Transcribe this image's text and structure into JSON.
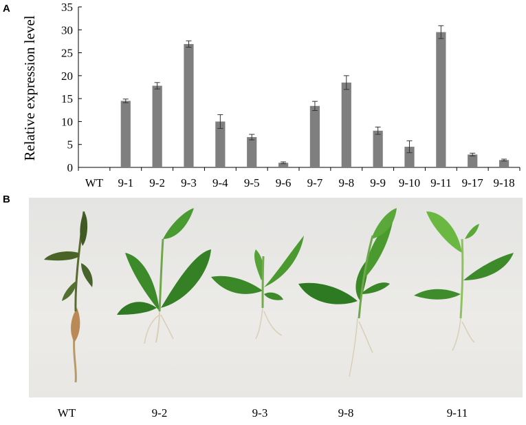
{
  "panel_a_label": "A",
  "panel_b_label": "B",
  "chart_data": {
    "type": "bar",
    "ylabel": "Relative expression level",
    "xlabel": "",
    "ylim": [
      0,
      35
    ],
    "yticks": [
      0,
      5,
      10,
      15,
      20,
      25,
      30,
      35
    ],
    "categories": [
      "WT",
      "9-1",
      "9-2",
      "9-3",
      "9-4",
      "9-5",
      "9-6",
      "9-7",
      "9-8",
      "9-9",
      "9-10",
      "9-11",
      "9-17",
      "9-18"
    ],
    "values": [
      0,
      14.5,
      17.8,
      26.9,
      10.0,
      6.6,
      1.0,
      13.4,
      18.5,
      8.0,
      4.5,
      29.5,
      2.8,
      1.6
    ],
    "errors": [
      0,
      0.4,
      0.7,
      0.7,
      1.5,
      0.6,
      0.2,
      1.0,
      1.5,
      0.8,
      1.3,
      1.4,
      0.3,
      0.2
    ],
    "bar_color": "#7f7f7f",
    "grid": false
  },
  "photo": {
    "captions": [
      "WT",
      "9-2",
      "9-3",
      "9-8",
      "9-11"
    ]
  }
}
